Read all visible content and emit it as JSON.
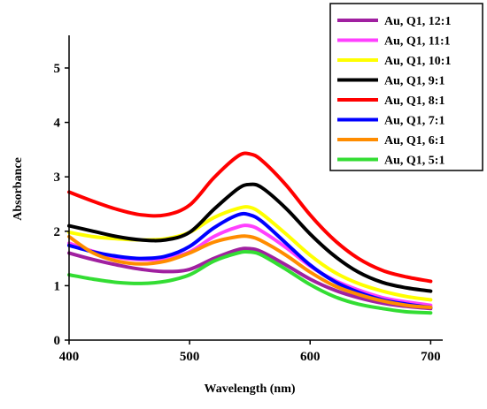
{
  "chart_data": {
    "type": "line",
    "title": "",
    "xlabel": "Wavelength (nm)",
    "ylabel": "Absorbance",
    "xlim": [
      400,
      710
    ],
    "ylim": [
      0,
      5.6
    ],
    "xticks": [
      400,
      500,
      600,
      700
    ],
    "yticks": [
      0,
      1,
      2,
      3,
      4,
      5
    ],
    "grid": false,
    "legend_position": "top-right",
    "x": [
      400,
      420,
      440,
      460,
      480,
      500,
      520,
      540,
      550,
      560,
      580,
      600,
      620,
      640,
      660,
      680,
      700
    ],
    "series": [
      {
        "name": "Au, Q1, 12:1",
        "color": "#a020a0",
        "values": [
          1.6,
          1.48,
          1.38,
          1.3,
          1.26,
          1.3,
          1.5,
          1.66,
          1.68,
          1.62,
          1.38,
          1.12,
          0.92,
          0.78,
          0.68,
          0.62,
          0.58
        ]
      },
      {
        "name": "Au, Q1, 11:1",
        "color": "#ff40ff",
        "values": [
          1.78,
          1.63,
          1.52,
          1.48,
          1.5,
          1.62,
          1.9,
          2.08,
          2.1,
          2.0,
          1.7,
          1.36,
          1.1,
          0.92,
          0.78,
          0.7,
          0.64
        ]
      },
      {
        "name": "Au, Q1, 10:1",
        "color": "#ffff00",
        "values": [
          1.98,
          1.9,
          1.86,
          1.84,
          1.86,
          1.98,
          2.25,
          2.42,
          2.44,
          2.32,
          1.95,
          1.56,
          1.25,
          1.04,
          0.9,
          0.8,
          0.74
        ]
      },
      {
        "name": "Au, Q1, 9:1",
        "color": "#000000",
        "values": [
          2.1,
          2.0,
          1.9,
          1.84,
          1.84,
          1.98,
          2.4,
          2.78,
          2.86,
          2.8,
          2.42,
          1.95,
          1.55,
          1.25,
          1.06,
          0.96,
          0.9
        ]
      },
      {
        "name": "Au, Q1, 8:1",
        "color": "#ff0000",
        "values": [
          2.72,
          2.55,
          2.4,
          2.3,
          2.3,
          2.48,
          2.98,
          3.38,
          3.42,
          3.3,
          2.85,
          2.3,
          1.84,
          1.5,
          1.28,
          1.16,
          1.08
        ]
      },
      {
        "name": "Au, Q1, 7:1",
        "color": "#0000ff",
        "values": [
          1.74,
          1.62,
          1.54,
          1.5,
          1.54,
          1.72,
          2.06,
          2.3,
          2.3,
          2.18,
          1.78,
          1.38,
          1.08,
          0.88,
          0.74,
          0.66,
          0.6
        ]
      },
      {
        "name": "Au, Q1, 6:1",
        "color": "#ff8c00",
        "values": [
          1.9,
          1.6,
          1.45,
          1.4,
          1.45,
          1.6,
          1.8,
          1.9,
          1.9,
          1.82,
          1.56,
          1.25,
          1.0,
          0.84,
          0.72,
          0.64,
          0.6
        ]
      },
      {
        "name": "Au, Q1, 5:1",
        "color": "#33dd33",
        "values": [
          1.2,
          1.12,
          1.06,
          1.04,
          1.08,
          1.2,
          1.45,
          1.6,
          1.62,
          1.56,
          1.3,
          1.02,
          0.8,
          0.66,
          0.58,
          0.52,
          0.5
        ]
      }
    ]
  }
}
